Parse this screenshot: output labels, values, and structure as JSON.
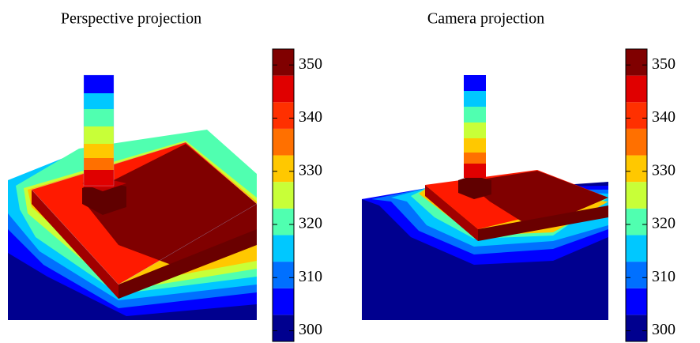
{
  "chart_data": [
    {
      "type": "colorbar",
      "title": "Perspective projection",
      "levels": [
        298,
        303,
        308,
        313,
        318,
        323,
        328,
        333,
        338,
        343,
        348,
        353
      ],
      "colors": [
        "#00008f",
        "#0000ff",
        "#0070ff",
        "#00c8ff",
        "#50ffb0",
        "#c8ff38",
        "#ffc800",
        "#ff7000",
        "#ff3000",
        "#e00000",
        "#800000"
      ],
      "ylim": [
        298,
        353
      ],
      "yticks": [
        300,
        310,
        320,
        330,
        340,
        350
      ]
    },
    {
      "type": "colorbar",
      "title": "Camera projection",
      "levels": [
        298,
        303,
        308,
        313,
        318,
        323,
        328,
        333,
        338,
        343,
        348,
        353
      ],
      "colors": [
        "#00008f",
        "#0000ff",
        "#0070ff",
        "#00c8ff",
        "#50ffb0",
        "#c8ff38",
        "#ffc800",
        "#ff7000",
        "#ff3000",
        "#e00000",
        "#800000"
      ],
      "ylim": [
        298,
        353
      ],
      "yticks": [
        300,
        310,
        320,
        330,
        340,
        350
      ]
    }
  ]
}
